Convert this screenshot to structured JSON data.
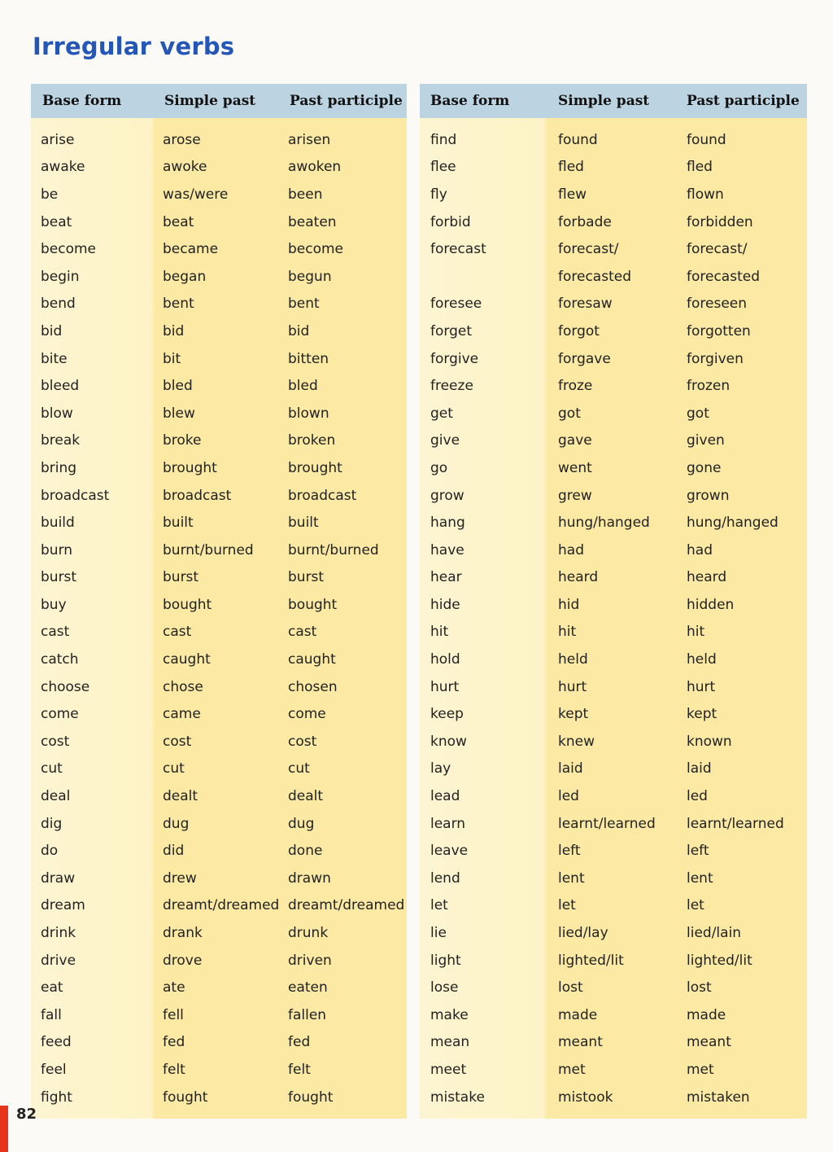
{
  "title": "Irregular verbs",
  "headers": [
    "Base form",
    "Simple past",
    "Past participle"
  ],
  "left_table": [
    [
      "arise",
      "arose",
      "arisen"
    ],
    [
      "awake",
      "awoke",
      "awoken"
    ],
    [
      "be",
      "was/were",
      "been"
    ],
    [
      "beat",
      "beat",
      "beaten"
    ],
    [
      "become",
      "became",
      "become"
    ],
    [
      "begin",
      "began",
      "begun"
    ],
    [
      "bend",
      "bent",
      "bent"
    ],
    [
      "bid",
      "bid",
      "bid"
    ],
    [
      "bite",
      "bit",
      "bitten"
    ],
    [
      "bleed",
      "bled",
      "bled"
    ],
    [
      "blow",
      "blew",
      "blown"
    ],
    [
      "break",
      "broke",
      "broken"
    ],
    [
      "bring",
      "brought",
      "brought"
    ],
    [
      "broadcast",
      "broadcast",
      "broadcast"
    ],
    [
      "build",
      "built",
      "built"
    ],
    [
      "burn",
      "burnt/burned",
      "burnt/burned"
    ],
    [
      "burst",
      "burst",
      "burst"
    ],
    [
      "buy",
      "bought",
      "bought"
    ],
    [
      "cast",
      "cast",
      "cast"
    ],
    [
      "catch",
      "caught",
      "caught"
    ],
    [
      "choose",
      "chose",
      "chosen"
    ],
    [
      "come",
      "came",
      "come"
    ],
    [
      "cost",
      "cost",
      "cost"
    ],
    [
      "cut",
      "cut",
      "cut"
    ],
    [
      "deal",
      "dealt",
      "dealt"
    ],
    [
      "dig",
      "dug",
      "dug"
    ],
    [
      "do",
      "did",
      "done"
    ],
    [
      "draw",
      "drew",
      "drawn"
    ],
    [
      "dream",
      "dreamt/dreamed",
      "dreamt/dreamed"
    ],
    [
      "drink",
      "drank",
      "drunk"
    ],
    [
      "drive",
      "drove",
      "driven"
    ],
    [
      "eat",
      "ate",
      "eaten"
    ],
    [
      "fall",
      "fell",
      "fallen"
    ],
    [
      "feed",
      "fed",
      "fed"
    ],
    [
      "feel",
      "felt",
      "felt"
    ],
    [
      "fight",
      "fought",
      "fought"
    ]
  ],
  "right_table": [
    [
      "find",
      "found",
      "found"
    ],
    [
      "flee",
      "fled",
      "fled"
    ],
    [
      "fly",
      "flew",
      "flown"
    ],
    [
      "forbid",
      "forbade",
      "forbidden"
    ],
    [
      "forecast",
      "forecast/",
      "forecast/"
    ],
    [
      "",
      "forecasted",
      "forecasted"
    ],
    [
      "foresee",
      "foresaw",
      "foreseen"
    ],
    [
      "forget",
      "forgot",
      "forgotten"
    ],
    [
      "forgive",
      "forgave",
      "forgiven"
    ],
    [
      "freeze",
      "froze",
      "frozen"
    ],
    [
      "get",
      "got",
      "got"
    ],
    [
      "give",
      "gave",
      "given"
    ],
    [
      "go",
      "went",
      "gone"
    ],
    [
      "grow",
      "grew",
      "grown"
    ],
    [
      "hang",
      "hung/hanged",
      "hung/hanged"
    ],
    [
      "have",
      "had",
      "had"
    ],
    [
      "hear",
      "heard",
      "heard"
    ],
    [
      "hide",
      "hid",
      "hidden"
    ],
    [
      "hit",
      "hit",
      "hit"
    ],
    [
      "hold",
      "held",
      "held"
    ],
    [
      "hurt",
      "hurt",
      "hurt"
    ],
    [
      "keep",
      "kept",
      "kept"
    ],
    [
      "know",
      "knew",
      "known"
    ],
    [
      "lay",
      "laid",
      "laid"
    ],
    [
      "lead",
      "led",
      "led"
    ],
    [
      "learn",
      "learnt/learned",
      "learnt/learned"
    ],
    [
      "leave",
      "left",
      "left"
    ],
    [
      "lend",
      "lent",
      "lent"
    ],
    [
      "let",
      "let",
      "let"
    ],
    [
      "lie",
      "lied/lay",
      "lied/lain"
    ],
    [
      "light",
      "lighted/lit",
      "lighted/lit"
    ],
    [
      "lose",
      "lost",
      "lost"
    ],
    [
      "make",
      "made",
      "made"
    ],
    [
      "mean",
      "meant",
      "meant"
    ],
    [
      "meet",
      "met",
      "met"
    ],
    [
      "mistake",
      "mistook",
      "mistaken"
    ]
  ],
  "page_number": "82",
  "colors": {
    "title": "#2456b8",
    "header_bg": "#bcd3e2",
    "row_bg": "#fbe9a4",
    "page_marker": "#e8331d"
  }
}
